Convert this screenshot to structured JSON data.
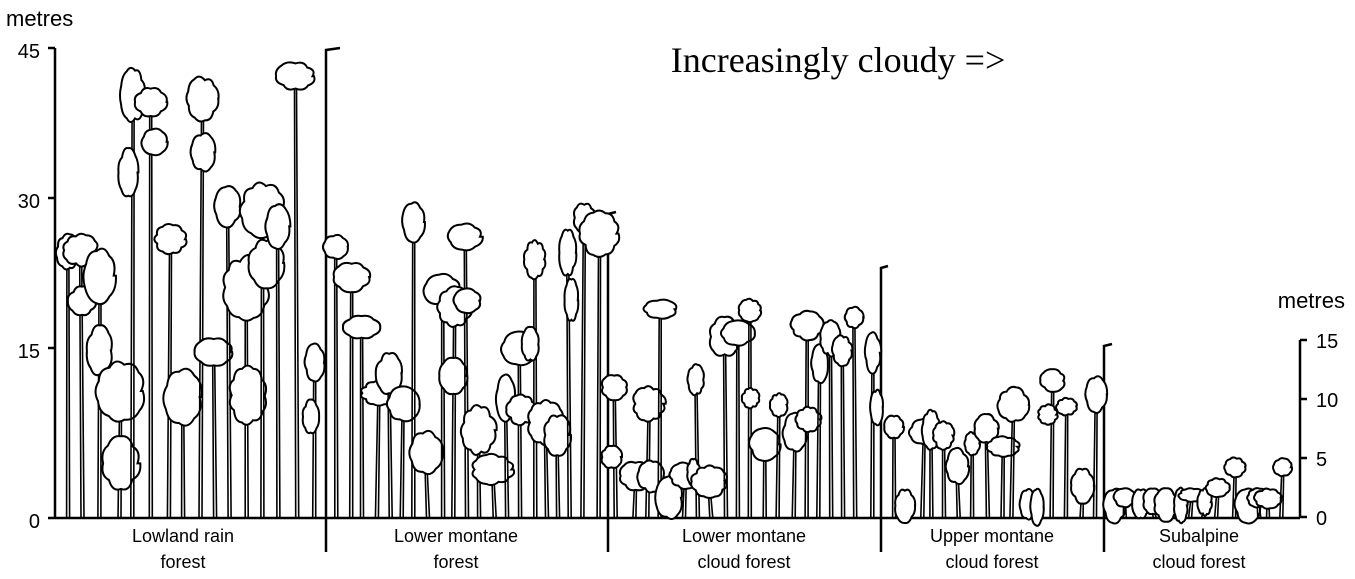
{
  "title": "Increasingly cloudy =>",
  "left_axis": {
    "unit": "metres",
    "ticks": [
      0,
      15,
      30,
      45
    ],
    "max": 45
  },
  "right_axis": {
    "unit": "metres",
    "ticks": [
      0,
      5,
      10,
      15
    ],
    "max": 15
  },
  "zones": [
    {
      "id": "lowland",
      "line1": "Lowland rain",
      "line2": "forest",
      "canopy_height_m": 45
    },
    {
      "id": "lower-montane",
      "line1": "Lower montane",
      "line2": "forest",
      "canopy_height_m": 30
    },
    {
      "id": "lower-montane-cloud",
      "line1": "Lower montane",
      "line2": "cloud forest",
      "canopy_height_m": 20
    },
    {
      "id": "upper-montane-cloud",
      "line1": "Upper montane",
      "line2": "cloud forest",
      "canopy_height_m": 13
    },
    {
      "id": "subalpine-cloud",
      "line1": "Subalpine",
      "line2": "cloud forest",
      "canopy_height_m": 5
    }
  ],
  "style": {
    "ink": "#000000",
    "paper": "#ffffff"
  }
}
